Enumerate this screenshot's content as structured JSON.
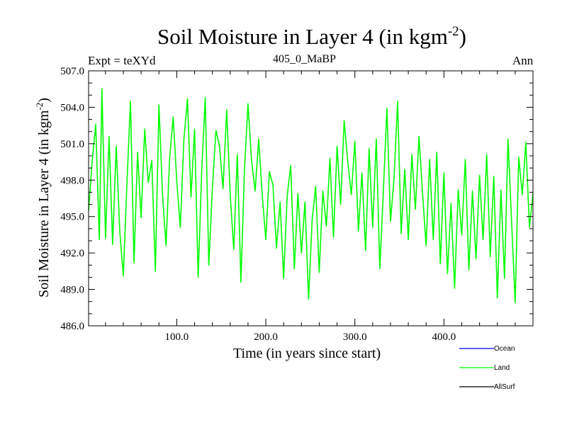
{
  "chart_data": {
    "type": "line",
    "title": "Soil Moisture in Layer 4 (in kgm",
    "title_sup": "-2",
    "title_close": ")",
    "subtitle_left": "Expt = teXYd",
    "subtitle_center": "405_0_MaBP",
    "subtitle_right": "Ann",
    "xlabel": "Time (in years since start)",
    "ylabel": "Soil Moisture in Layer 4 (in kgm",
    "ylabel_sup": "-2",
    "ylabel_close": ")",
    "xlim": [
      1,
      500
    ],
    "ylim": [
      486.0,
      507.0
    ],
    "xticks": [
      100.0,
      200.0,
      300.0,
      400.0
    ],
    "xtick_labels": [
      "100.0",
      "200.0",
      "300.0",
      "400.0"
    ],
    "yticks": [
      486.0,
      489.0,
      492.0,
      495.0,
      498.0,
      501.0,
      504.0,
      507.0
    ],
    "ytick_labels": [
      "486.0",
      "489.0",
      "492.0",
      "495.0",
      "498.0",
      "501.0",
      "504.0",
      "507.0"
    ],
    "legend_position": "bottom-right",
    "series": [
      {
        "name": "Ocean",
        "color": "#0000ff",
        "x": [],
        "y": []
      },
      {
        "name": "Land",
        "color": "#00ff00",
        "x": [
          1,
          5,
          9,
          13,
          16,
          20,
          24,
          28,
          32,
          36,
          40,
          44,
          48,
          52,
          56,
          60,
          64,
          68,
          72,
          76,
          80,
          84,
          88,
          92,
          96,
          100,
          104,
          108,
          112,
          116,
          120,
          124,
          128,
          132,
          136,
          140,
          144,
          148,
          152,
          156,
          160,
          164,
          168,
          172,
          176,
          180,
          184,
          188,
          192,
          196,
          200,
          204,
          208,
          212,
          216,
          220,
          224,
          228,
          232,
          236,
          240,
          244,
          248,
          252,
          256,
          260,
          264,
          268,
          272,
          276,
          280,
          284,
          288,
          292,
          296,
          300,
          304,
          308,
          312,
          316,
          320,
          324,
          328,
          332,
          336,
          340,
          344,
          348,
          352,
          356,
          360,
          364,
          368,
          372,
          376,
          380,
          384,
          388,
          392,
          396,
          400,
          404,
          408,
          412,
          416,
          420,
          424,
          428,
          432,
          436,
          440,
          444,
          448,
          452,
          456,
          460,
          464,
          468,
          472,
          476,
          480,
          484,
          488,
          492,
          496,
          500
        ],
        "y": [
          495.5,
          499.5,
          502.6,
          493.1,
          505.5,
          493.2,
          501.6,
          492.7,
          500.8,
          493.8,
          490.1,
          497.6,
          504.5,
          491.2,
          500.3,
          494.9,
          502.2,
          497.8,
          499.6,
          490.5,
          504.2,
          496.8,
          492.6,
          499.8,
          503.2,
          497.9,
          494.1,
          501.3,
          504.7,
          496.6,
          502.2,
          490.0,
          498.8,
          504.8,
          491.0,
          497.4,
          502.1,
          500.8,
          497.3,
          503.8,
          496.8,
          492.3,
          500.1,
          489.6,
          498.8,
          504.3,
          499.6,
          497.1,
          501.4,
          496.8,
          493.1,
          498.7,
          497.6,
          492.4,
          496.2,
          489.9,
          496.7,
          499.2,
          490.7,
          496.9,
          492.0,
          496.2,
          488.2,
          494.7,
          497.5,
          490.4,
          497.1,
          494.2,
          499.8,
          493.3,
          500.8,
          496.0,
          502.9,
          499.6,
          496.8,
          501.2,
          493.8,
          498.6,
          492.2,
          500.6,
          494.1,
          501.4,
          490.7,
          497.1,
          503.9,
          494.6,
          498.2,
          504.5,
          493.6,
          498.9,
          493.1,
          500.1,
          495.6,
          501.6,
          496.9,
          492.6,
          499.7,
          493.1,
          500.3,
          491.1,
          498.6,
          490.3,
          496.1,
          489.1,
          497.2,
          493.5,
          499.7,
          490.6,
          497.1,
          491.5,
          498.4,
          493.1,
          500.1,
          491.7,
          498.3,
          488.3,
          497.2,
          489.9,
          501.4,
          494.6,
          487.9,
          499.9,
          496.8,
          501.1,
          494.1,
          496.9
        ]
      },
      {
        "name": "AllSurf",
        "color": "#000000",
        "x": [],
        "y": []
      }
    ]
  }
}
